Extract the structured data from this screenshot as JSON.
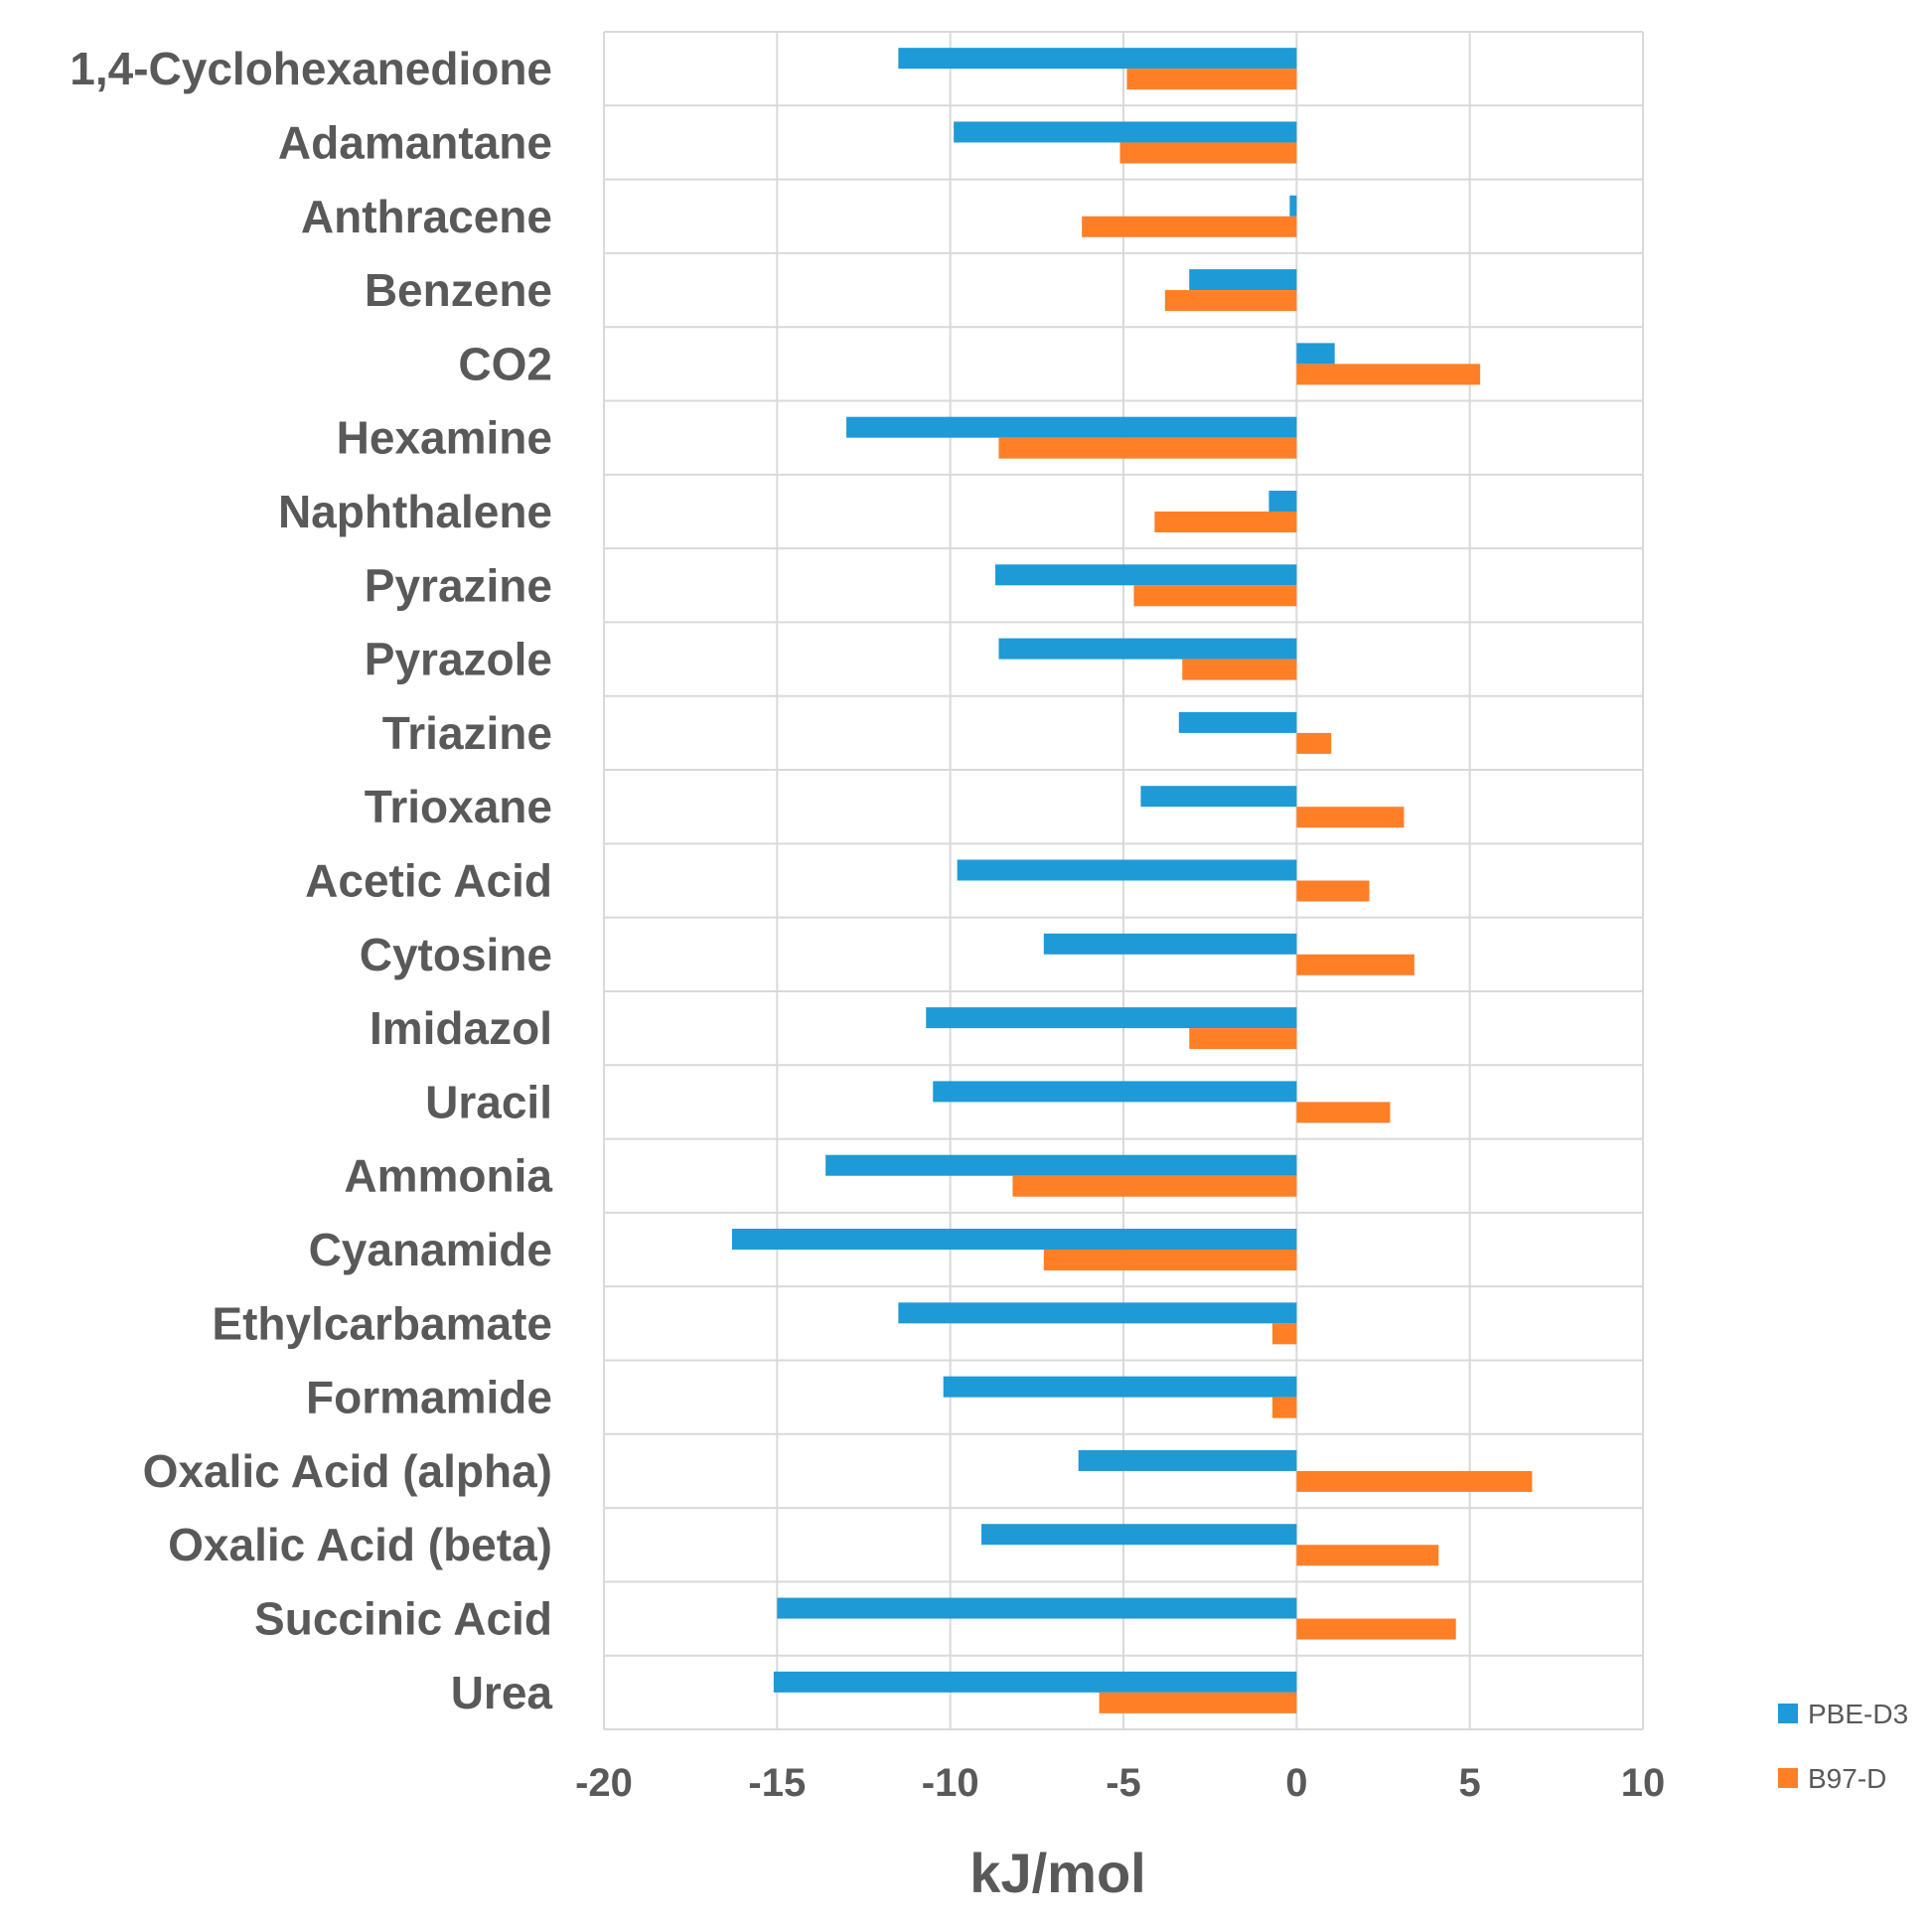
{
  "chart_data": {
    "type": "bar",
    "orientation": "horizontal",
    "categories": [
      "1,4-Cyclohexanedione",
      "Adamantane",
      "Anthracene",
      "Benzene",
      "CO2",
      "Hexamine",
      "Naphthalene",
      "Pyrazine",
      "Pyrazole",
      "Triazine",
      "Trioxane",
      "Acetic Acid",
      "Cytosine",
      "Imidazol",
      "Uracil",
      "Ammonia",
      "Cyanamide",
      "Ethylcarbamate",
      "Formamide",
      "Oxalic Acid (alpha)",
      "Oxalic Acid (beta)",
      "Succinic Acid",
      "Urea"
    ],
    "series": [
      {
        "name": "PBE-D3",
        "color": "#1e9ad6",
        "values": [
          -11.5,
          -9.9,
          -0.2,
          -3.1,
          1.1,
          -13.0,
          -0.8,
          -8.7,
          -8.6,
          -3.4,
          -4.5,
          -9.8,
          -7.3,
          -10.7,
          -10.5,
          -13.6,
          -16.3,
          -11.5,
          -10.2,
          -6.3,
          -9.1,
          -15.0,
          -15.1
        ]
      },
      {
        "name": "B97-D",
        "color": "#ff7f27",
        "values": [
          -4.9,
          -5.1,
          -6.2,
          -3.8,
          5.3,
          -8.6,
          -4.1,
          -4.7,
          -3.3,
          1.0,
          3.1,
          2.1,
          3.4,
          -3.1,
          2.7,
          -8.2,
          -7.3,
          -0.7,
          -0.7,
          6.8,
          4.1,
          4.6,
          -5.7
        ]
      }
    ],
    "xlabel": "kJ/mol",
    "xlim": [
      -20,
      10
    ],
    "xticks": [
      "-20",
      "-15",
      "-10",
      "-5",
      "0",
      "5",
      "10"
    ],
    "xtick_values": [
      -20,
      -15,
      -10,
      -5,
      0,
      5,
      10
    ],
    "grid": true,
    "legend": "bottom-right"
  }
}
